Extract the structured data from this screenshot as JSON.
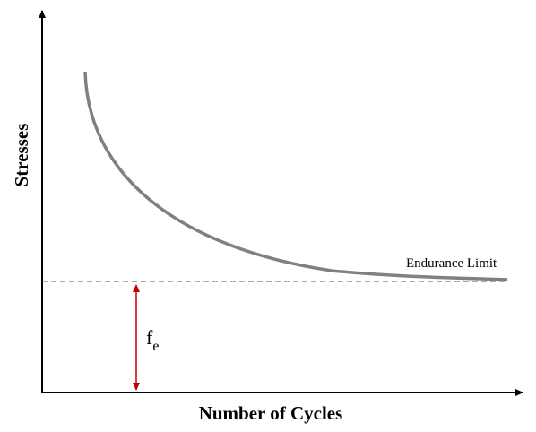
{
  "axes": {
    "x_label": "Number of Cycles",
    "y_label": "Stresses"
  },
  "annotations": {
    "endurance_limit": "Endurance Limit",
    "symbol": "f",
    "symbol_subscript": "e"
  }
}
